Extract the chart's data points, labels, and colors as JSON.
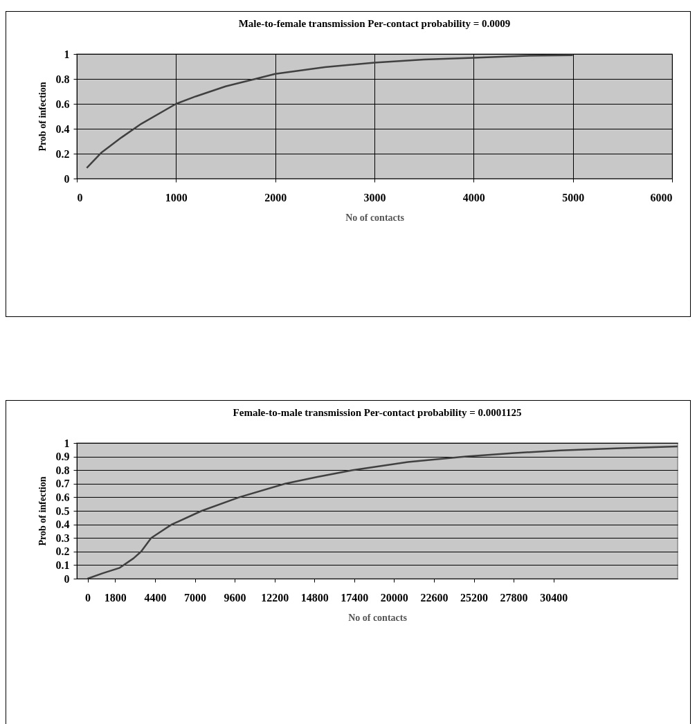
{
  "chart_data": [
    {
      "type": "line",
      "title": "Male-to-female transmission   Per-contact probability = 0.0009",
      "xlabel": "No of contacts",
      "ylabel": "Prob of infection",
      "x": [
        100,
        250,
        450,
        650,
        1000,
        1200,
        1500,
        1800,
        2000,
        2500,
        3000,
        3500,
        4000,
        4500,
        5000
      ],
      "series": [
        {
          "color": "#404040",
          "values": [
            0.085,
            0.21,
            0.33,
            0.44,
            0.6,
            0.66,
            0.74,
            0.8,
            0.84,
            0.895,
            0.93,
            0.955,
            0.97,
            0.985,
            0.99
          ]
        }
      ],
      "xlim": [
        0,
        6000
      ],
      "xticks": [
        0,
        1000,
        2000,
        3000,
        4000,
        5000,
        6000
      ],
      "ylim": [
        0,
        1
      ],
      "yticks": [
        0,
        0.2,
        0.4,
        0.6,
        0.8,
        1
      ],
      "grid": true
    },
    {
      "type": "line",
      "title": "Female-to-male transmission Per-contact probability = 0.0001125",
      "xlabel": "No of contacts",
      "ylabel": "Prob of infection",
      "x": [
        0,
        1000,
        2100,
        3000,
        3500,
        4150,
        5500,
        7450,
        9900,
        12900,
        15000,
        17300,
        20900,
        24700,
        27700,
        30850,
        34500,
        38500
      ],
      "series": [
        {
          "color": "#404040",
          "values": [
            0,
            0.04,
            0.08,
            0.15,
            0.2,
            0.3,
            0.4,
            0.5,
            0.6,
            0.7,
            0.75,
            0.8,
            0.86,
            0.9,
            0.925,
            0.945,
            0.96,
            0.975
          ]
        }
      ],
      "xlim": [
        -700,
        38500
      ],
      "xticks": [
        0,
        1800,
        4400,
        7000,
        9600,
        12200,
        14800,
        17400,
        20000,
        22600,
        25200,
        27800,
        30400
      ],
      "ylim": [
        0,
        1
      ],
      "yticks": [
        0,
        0.1,
        0.2,
        0.3,
        0.4,
        0.5,
        0.6,
        0.7,
        0.8,
        0.9,
        1
      ],
      "grid": "y"
    }
  ]
}
